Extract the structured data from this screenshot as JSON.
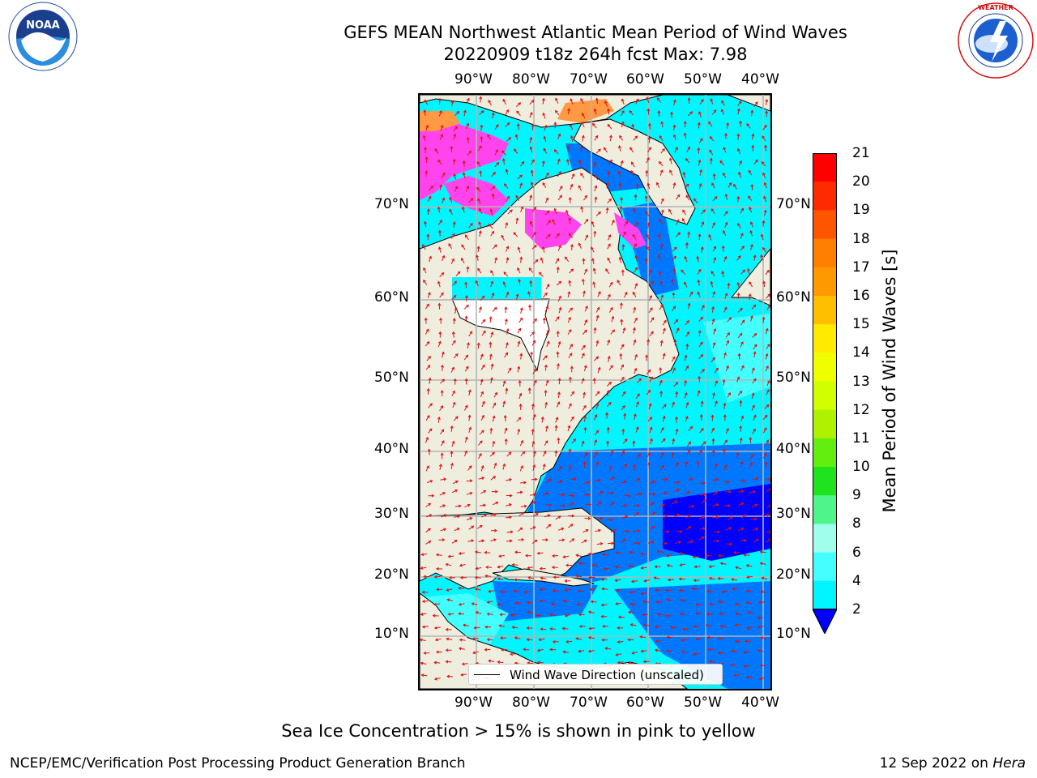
{
  "title_line1": "GEFS MEAN Northwest Atlantic Mean Period of Wind Waves",
  "title_line2": "20220909 t18z 264h fcst   Max: 7.98",
  "lon_labels": [
    "90°W",
    "80°W",
    "70°W",
    "60°W",
    "50°W",
    "40°W"
  ],
  "lat_labels": [
    "70°N",
    "60°N",
    "50°N",
    "40°N",
    "30°N",
    "20°N",
    "10°N"
  ],
  "legend": {
    "label": "Wind Wave Direction (unscaled)"
  },
  "colorbar": {
    "label": "Mean Period of Wind Waves [s]",
    "ticks": [
      "21",
      "20",
      "19",
      "18",
      "17",
      "16",
      "15",
      "14",
      "13",
      "12",
      "11",
      "10",
      "9",
      "8",
      "6",
      "4",
      "2"
    ],
    "colors": [
      "#ff0000",
      "#ff2a00",
      "#ff5500",
      "#ff7f00",
      "#ff9900",
      "#ffbf00",
      "#ffea00",
      "#f0ff00",
      "#d2ff00",
      "#aef200",
      "#64ee10",
      "#1ee31e",
      "#4df58a",
      "#a0ffec",
      "#44ffff",
      "#00f5ff",
      "#0077ff"
    ],
    "under_color": "#0000ff"
  },
  "footnote": "Sea Ice Concentration > 15% is shown in pink to yellow",
  "footer_left": "NCEP/EMC/Verification Post Processing Product Generation Branch",
  "footer_date": "12 Sep 2022 on ",
  "footer_host": "Hera",
  "colors": {
    "land": "#efedde",
    "arrow": "#e01010",
    "ice": "#ff44ee",
    "grid": "#b4b4b4"
  }
}
